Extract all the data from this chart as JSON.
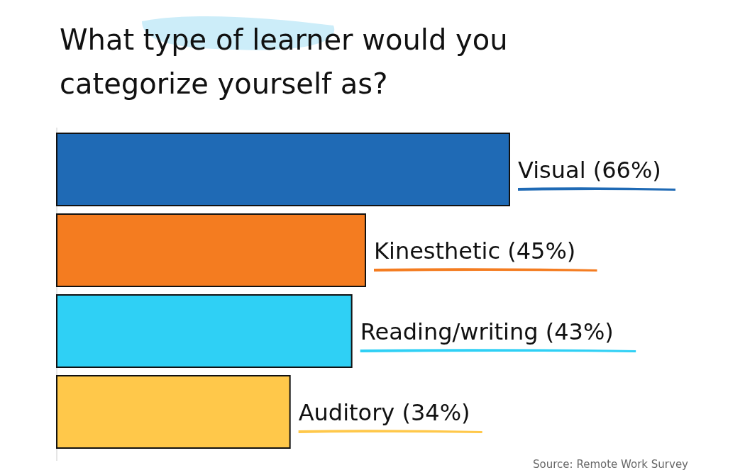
{
  "chart_data": {
    "type": "bar",
    "orientation": "horizontal",
    "title": "What type of learner would you categorize yourself as?",
    "categories": [
      null,
      null,
      null,
      null
    ],
    "values": [
      66,
      45,
      43,
      34
    ],
    "value_labels": [
      "Visual (66%)",
      "Kinesthetic (45%)",
      "Reading/writing (43%)",
      "Auditory (34%)"
    ],
    "colors": [
      "#1f6ab5",
      "#f47c20",
      "#2fd0f5",
      "#ffc84a"
    ],
    "annotations": [
      "Source: Remote Work Survey"
    ]
  }
}
